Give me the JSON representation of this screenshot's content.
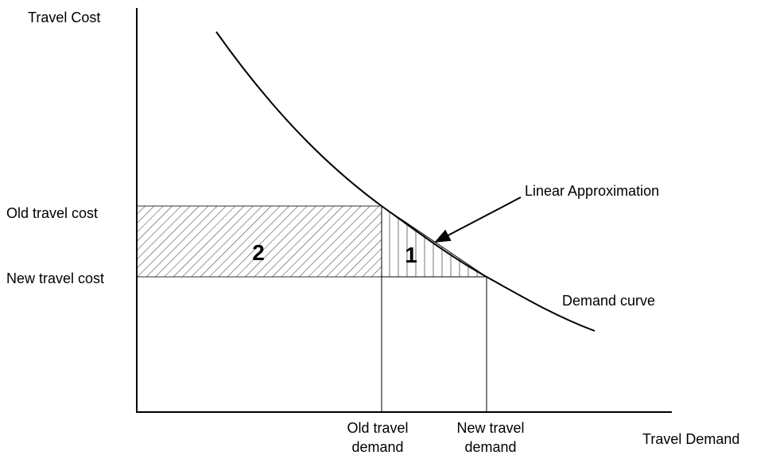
{
  "axes": {
    "y_label": "Travel Cost",
    "x_label": "Travel Demand"
  },
  "levels": {
    "old_cost": "Old travel cost",
    "new_cost": "New travel cost",
    "old_demand": [
      "Old travel",
      "demand"
    ],
    "new_demand": [
      "New travel",
      "demand"
    ]
  },
  "regions": [
    "2",
    "1"
  ],
  "annotations": {
    "linear": "Linear Approximation",
    "curve": "Demand curve"
  }
}
